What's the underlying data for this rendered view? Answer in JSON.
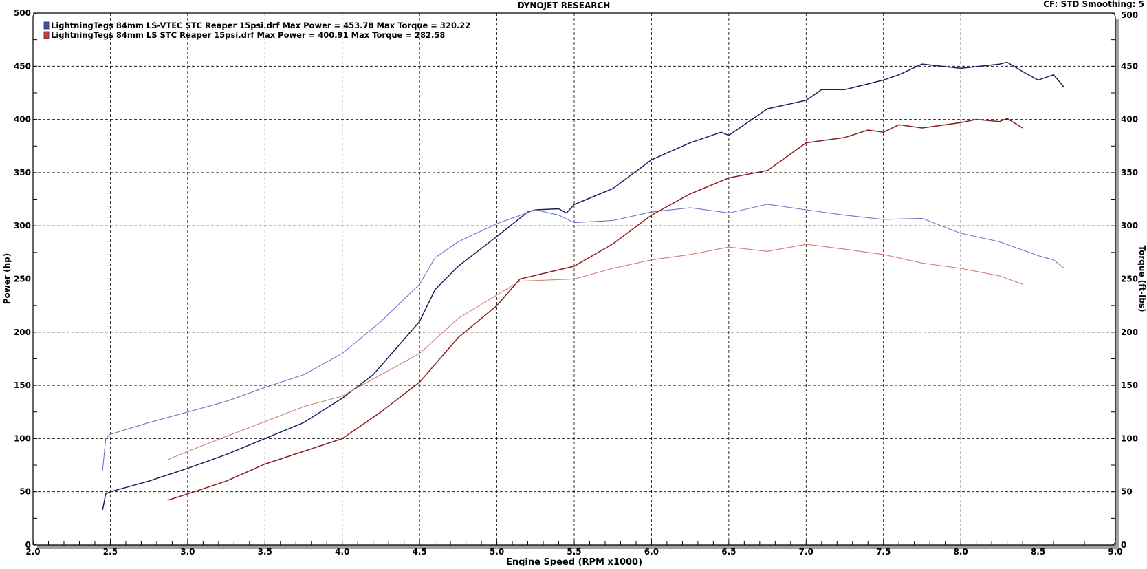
{
  "chart_data": {
    "type": "line",
    "title": "DYNOJET RESEARCH",
    "info": "CF: STD  Smoothing: 5",
    "xlabel": "Engine Speed (RPM x1000)",
    "ylabel": "Power (hp)",
    "y2label": "Torque (ft-lbs)",
    "xlim": [
      2.0,
      9.0
    ],
    "ylim": [
      0,
      500
    ],
    "y2lim": [
      0,
      500
    ],
    "xticks": [
      "2.0",
      "2.5",
      "3.0",
      "3.5",
      "4.0",
      "4.5",
      "5.0",
      "5.5",
      "6.0",
      "6.5",
      "7.0",
      "7.5",
      "8.0",
      "8.5",
      "9.0"
    ],
    "yticks": [
      "0",
      "50",
      "100",
      "150",
      "200",
      "250",
      "300",
      "350",
      "400",
      "450",
      "500"
    ],
    "grid": true,
    "legend_placement": "top-left",
    "legend": [
      {
        "text": "LightningTegs 84mm LS-VTEC STC Reaper 15psi.drf Max Power = 453.78     Max Torque = 320.22",
        "color": "#3c4fd0"
      },
      {
        "text": "LightningTegs 84mm LS STC Reaper 15psi.drf Max Power = 400.91     Max Torque = 282.58",
        "color": "#d03c3c"
      }
    ],
    "series": [
      {
        "run": "LS-VTEC",
        "quantity": "power",
        "color": "#1c1f5e",
        "x": [
          2.45,
          2.47,
          2.5,
          2.75,
          3.0,
          3.25,
          3.5,
          3.75,
          4.0,
          4.2,
          4.35,
          4.5,
          4.6,
          4.75,
          5.0,
          5.2,
          5.25,
          5.4,
          5.45,
          5.5,
          5.75,
          6.0,
          6.25,
          6.45,
          6.5,
          6.75,
          7.0,
          7.1,
          7.25,
          7.5,
          7.6,
          7.75,
          8.0,
          8.25,
          8.3,
          8.4,
          8.5,
          8.6,
          8.67
        ],
        "y": [
          33,
          48,
          50,
          60,
          72,
          85,
          100,
          115,
          138,
          160,
          185,
          210,
          240,
          262,
          290,
          313,
          315,
          316,
          312,
          320,
          335,
          362,
          378,
          388,
          385,
          410,
          418,
          428,
          428,
          437,
          442,
          452,
          448,
          452,
          453.78,
          445,
          437,
          442,
          430
        ]
      },
      {
        "run": "LS-VTEC",
        "quantity": "torque",
        "color": "#6b78c6",
        "x": [
          2.45,
          2.47,
          2.5,
          2.75,
          3.0,
          3.25,
          3.5,
          3.75,
          4.0,
          4.25,
          4.5,
          4.6,
          4.75,
          5.0,
          5.25,
          5.4,
          5.5,
          5.75,
          6.0,
          6.25,
          6.5,
          6.75,
          7.0,
          7.25,
          7.5,
          7.75,
          8.0,
          8.25,
          8.5,
          8.6,
          8.67
        ],
        "y": [
          70,
          100,
          104,
          115,
          125,
          135,
          148,
          160,
          180,
          210,
          245,
          270,
          285,
          302,
          315,
          310,
          303,
          305,
          313,
          317,
          312,
          320.22,
          315,
          310,
          306,
          307,
          293,
          285,
          272,
          268,
          260
        ]
      },
      {
        "run": "LS",
        "quantity": "power",
        "color": "#8a1c1c",
        "x": [
          2.87,
          3.0,
          3.25,
          3.5,
          3.75,
          4.0,
          4.25,
          4.5,
          4.75,
          5.0,
          5.15,
          5.5,
          5.75,
          6.0,
          6.25,
          6.5,
          6.75,
          7.0,
          7.25,
          7.4,
          7.5,
          7.6,
          7.75,
          8.0,
          8.1,
          8.25,
          8.3,
          8.4
        ],
        "y": [
          42,
          48,
          60,
          76,
          88,
          100,
          125,
          153,
          195,
          225,
          250,
          262,
          283,
          310,
          330,
          345,
          352,
          378,
          383,
          390,
          388,
          395,
          392,
          397,
          400,
          398,
          400.91,
          392
        ]
      },
      {
        "run": "LS",
        "quantity": "torque",
        "color": "#d27d73",
        "x": [
          2.87,
          3.0,
          3.25,
          3.5,
          3.75,
          4.0,
          4.25,
          4.5,
          4.75,
          5.0,
          5.15,
          5.5,
          5.75,
          6.0,
          6.25,
          6.5,
          6.75,
          7.0,
          7.25,
          7.5,
          7.75,
          8.0,
          8.25,
          8.4
        ],
        "y": [
          80,
          88,
          102,
          116,
          130,
          140,
          160,
          180,
          213,
          235,
          248,
          250,
          260,
          268,
          273,
          280,
          276,
          282.58,
          278,
          273,
          265,
          260,
          253,
          245
        ]
      }
    ]
  }
}
